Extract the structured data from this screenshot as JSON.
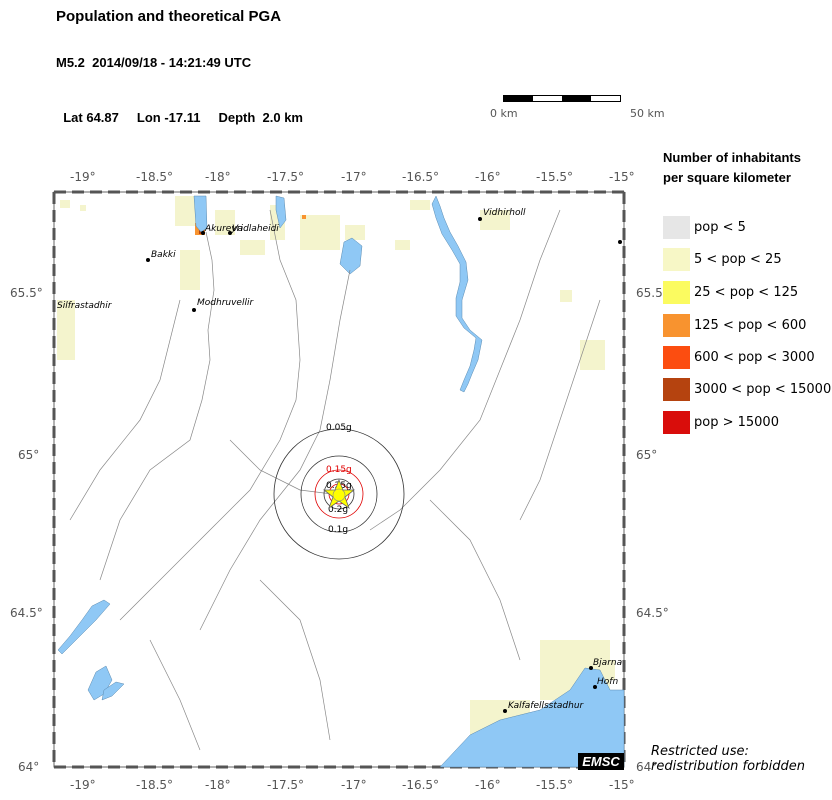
{
  "header": {
    "title": "Population and theoretical PGA",
    "event": "M5.2  2014/09/18 - 14:21:49 UTC",
    "lat": "Lat 64.87",
    "lon": "Lon -17.11",
    "depth": "Depth  2.0 km"
  },
  "scale_bar": {
    "left_label": "0 km",
    "right_label": "50 km"
  },
  "legend": {
    "title_line1": "Number of inhabitants",
    "title_line2": "per square kilometer",
    "items": [
      {
        "label": "pop < 5",
        "color": "#e6e6e6"
      },
      {
        "label": "5 < pop < 25",
        "color": "#f7f7c6"
      },
      {
        "label": "25 < pop < 125",
        "color": "#fbfb60"
      },
      {
        "label": "125 < pop < 600",
        "color": "#f8932f"
      },
      {
        "label": "600 < pop < 3000",
        "color": "#fc4d10"
      },
      {
        "label": "3000 < pop < 15000",
        "color": "#b5430f"
      },
      {
        "label": "pop > 15000",
        "color": "#d90d0b"
      }
    ]
  },
  "map": {
    "lon_ticks_top": [
      "-19°",
      "-18.5°",
      "-18°",
      "-17.5°",
      "-17°",
      "-16.5°",
      "-16°",
      "-15.5°",
      "-15°"
    ],
    "lon_ticks_bottom": [
      "-19°",
      "-18.5°",
      "-18°",
      "-17.5°",
      "-17°",
      "-16.5°",
      "-16°",
      "-15.5°",
      "-15°"
    ],
    "lat_ticks_left": [
      "65.5°",
      "65°",
      "64.5°",
      "64°"
    ],
    "lat_ticks_right": [
      "65.5°",
      "65°",
      "64.5°",
      "64°"
    ],
    "cities": [
      {
        "name": "Akureyri",
        "lon": -18.1,
        "lat": 65.68
      },
      {
        "name": "Vadlaheidi",
        "lon": -17.93,
        "lat": 65.69
      },
      {
        "name": "Bakki",
        "lon": -18.53,
        "lat": 65.61
      },
      {
        "name": "Modhruvellir",
        "lon": -18.2,
        "lat": 65.45
      },
      {
        "name": "Silfrastadhir",
        "lon": -19.0,
        "lat": 65.48
      },
      {
        "name": "Vidhirholl",
        "lon": -16.05,
        "lat": 65.73
      },
      {
        "name": "Bjarna",
        "lon": -15.23,
        "lat": 64.31
      },
      {
        "name": "Hofn",
        "lon": -15.21,
        "lat": 64.25
      },
      {
        "name": "Kalfafellsstadhur",
        "lon": -15.87,
        "lat": 64.18
      }
    ],
    "epicenter": {
      "lon": -17.11,
      "lat": 64.87
    },
    "pga_rings": [
      "0.05g",
      "0.1g",
      "0.15g",
      "0.2g",
      "0.25g"
    ],
    "watermark": "EMSC"
  },
  "notice": {
    "line1": "Restricted use:",
    "line2": "redistribution forbidden"
  },
  "colors": {
    "water": "#8fc8f5",
    "pga_red": "#e00000",
    "epicenter": "#ffff00"
  }
}
